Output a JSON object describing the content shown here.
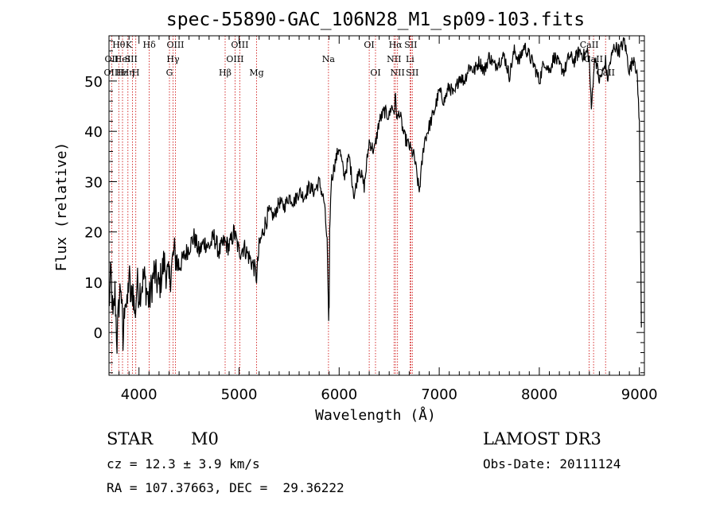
{
  "chart_data": {
    "type": "line",
    "title": "spec-55890-GAC_106N28_M1_sp09-103.fits",
    "xlabel": "Wavelength (Å)",
    "ylabel": "Flux (relative)",
    "xlim": [
      3700,
      9050
    ],
    "ylim": [
      -8.5,
      59
    ],
    "xticks": [
      4000,
      5000,
      6000,
      7000,
      8000,
      9000
    ],
    "yticks": [
      0,
      10,
      20,
      30,
      40,
      50
    ],
    "grid": false,
    "series": [
      {
        "name": "spectrum",
        "x": [
          3700,
          3720,
          3740,
          3760,
          3780,
          3800,
          3820,
          3840,
          3860,
          3880,
          3900,
          3920,
          3940,
          3960,
          3980,
          4000,
          4050,
          4100,
          4150,
          4200,
          4250,
          4300,
          4350,
          4400,
          4450,
          4500,
          4550,
          4600,
          4650,
          4700,
          4750,
          4800,
          4850,
          4900,
          4950,
          5000,
          5050,
          5100,
          5150,
          5175,
          5200,
          5250,
          5300,
          5350,
          5400,
          5450,
          5500,
          5550,
          5600,
          5650,
          5700,
          5750,
          5800,
          5850,
          5880,
          5895,
          5900,
          5905,
          5920,
          5950,
          6000,
          6050,
          6100,
          6150,
          6200,
          6250,
          6300,
          6350,
          6400,
          6450,
          6500,
          6520,
          6550,
          6563,
          6580,
          6600,
          6650,
          6700,
          6750,
          6800,
          6850,
          6900,
          6950,
          7000,
          7050,
          7100,
          7150,
          7200,
          7250,
          7300,
          7350,
          7400,
          7450,
          7500,
          7550,
          7600,
          7650,
          7700,
          7750,
          7800,
          7850,
          7900,
          7950,
          8000,
          8050,
          8100,
          8150,
          8200,
          8250,
          8300,
          8350,
          8400,
          8450,
          8480,
          8500,
          8520,
          8542,
          8560,
          8600,
          8640,
          8662,
          8680,
          8700,
          8750,
          8800,
          8850,
          8900,
          8950,
          8980,
          9000,
          9020
        ],
        "y": [
          5,
          12,
          2,
          8,
          -2,
          6,
          10,
          -3,
          8,
          4,
          12,
          6,
          9,
          3,
          10,
          8,
          11,
          6,
          12,
          9,
          14,
          10,
          16,
          13,
          15,
          17,
          19,
          16,
          18,
          17,
          19,
          16,
          18,
          17,
          20,
          16,
          17,
          15,
          13,
          11,
          17,
          21,
          24,
          23,
          26,
          25,
          27,
          26,
          28,
          27,
          29,
          28,
          30,
          26,
          18,
          1,
          6,
          20,
          30,
          33,
          37,
          31,
          35,
          27,
          33,
          29,
          38,
          36,
          42,
          44,
          43,
          45,
          44,
          47,
          42,
          44,
          39,
          37,
          35,
          28,
          38,
          41,
          44,
          48,
          46,
          49,
          47,
          51,
          50,
          53,
          52,
          54,
          52,
          55,
          53,
          54,
          55,
          51,
          56,
          54,
          57,
          55,
          53,
          50,
          54,
          52,
          55,
          53,
          52,
          55,
          54,
          56,
          55,
          56,
          54,
          44,
          52,
          55,
          50,
          52,
          54,
          50,
          53,
          57,
          56,
          58,
          52,
          55,
          50,
          42,
          1
        ]
      }
    ],
    "line_labels": [
      {
        "label": "Hθ",
        "wavelength": 3798,
        "row": 0
      },
      {
        "label": "OII",
        "wavelength": 3727,
        "row": 1
      },
      {
        "label": "OIII",
        "wavelength": 3736,
        "row": 2
      },
      {
        "label": "Hε",
        "wavelength": 3830,
        "row": 2
      },
      {
        "label": "HeI",
        "wavelength": 3835,
        "row": 1
      },
      {
        "label": "K",
        "wavelength": 3899,
        "row": 0
      },
      {
        "label": "SII",
        "wavelength": 3920,
        "row": 1
      },
      {
        "label": "Hη",
        "wavelength": 3889,
        "row": 2
      },
      {
        "label": "H",
        "wavelength": 3968,
        "row": 2
      },
      {
        "label": "Hδ",
        "wavelength": 4102,
        "row": 0
      },
      {
        "label": "OIII",
        "wavelength": 4364,
        "row": 0
      },
      {
        "label": "Hγ",
        "wavelength": 4340,
        "row": 1
      },
      {
        "label": "G",
        "wavelength": 4304,
        "row": 2
      },
      {
        "label": "OIII",
        "wavelength": 5007,
        "row": 0
      },
      {
        "label": "OIII",
        "wavelength": 4959,
        "row": 1
      },
      {
        "label": "Hβ",
        "wavelength": 4861,
        "row": 2
      },
      {
        "label": "Mg",
        "wavelength": 5175,
        "row": 2
      },
      {
        "label": "Na",
        "wavelength": 5893,
        "row": 1
      },
      {
        "label": "OI",
        "wavelength": 6300,
        "row": 0
      },
      {
        "label": "OI",
        "wavelength": 6363,
        "row": 2
      },
      {
        "label": "Hα",
        "wavelength": 6563,
        "row": 0
      },
      {
        "label": "SII",
        "wavelength": 6716,
        "row": 0
      },
      {
        "label": "NII",
        "wavelength": 6548,
        "row": 1
      },
      {
        "label": "Li",
        "wavelength": 6708,
        "row": 1
      },
      {
        "label": "NII",
        "wavelength": 6583,
        "row": 2
      },
      {
        "label": "SII",
        "wavelength": 6731,
        "row": 2
      },
      {
        "label": "CaII",
        "wavelength": 8498,
        "row": 0
      },
      {
        "label": "CaII",
        "wavelength": 8542,
        "row": 1
      },
      {
        "label": "CaII",
        "wavelength": 8662,
        "row": 2
      }
    ],
    "marker_lines": [
      3727,
      3798,
      3835,
      3889,
      3934,
      3968,
      4102,
      4304,
      4340,
      4364,
      4861,
      4959,
      5007,
      5175,
      5893,
      6300,
      6363,
      6548,
      6563,
      6583,
      6708,
      6716,
      6731,
      8498,
      8542,
      8662
    ],
    "colors": {
      "axis": "#000000",
      "spectrum": "#000000",
      "marker_line": "#cc0000"
    }
  },
  "info": {
    "class": "STAR",
    "subclass": "M0",
    "survey": "LAMOST DR3",
    "cz": "cz = 12.3 ± 3.9 km/s",
    "obs_date": "Obs-Date: 20111124",
    "coords": "RA = 107.37663, DEC =  29.36222"
  }
}
